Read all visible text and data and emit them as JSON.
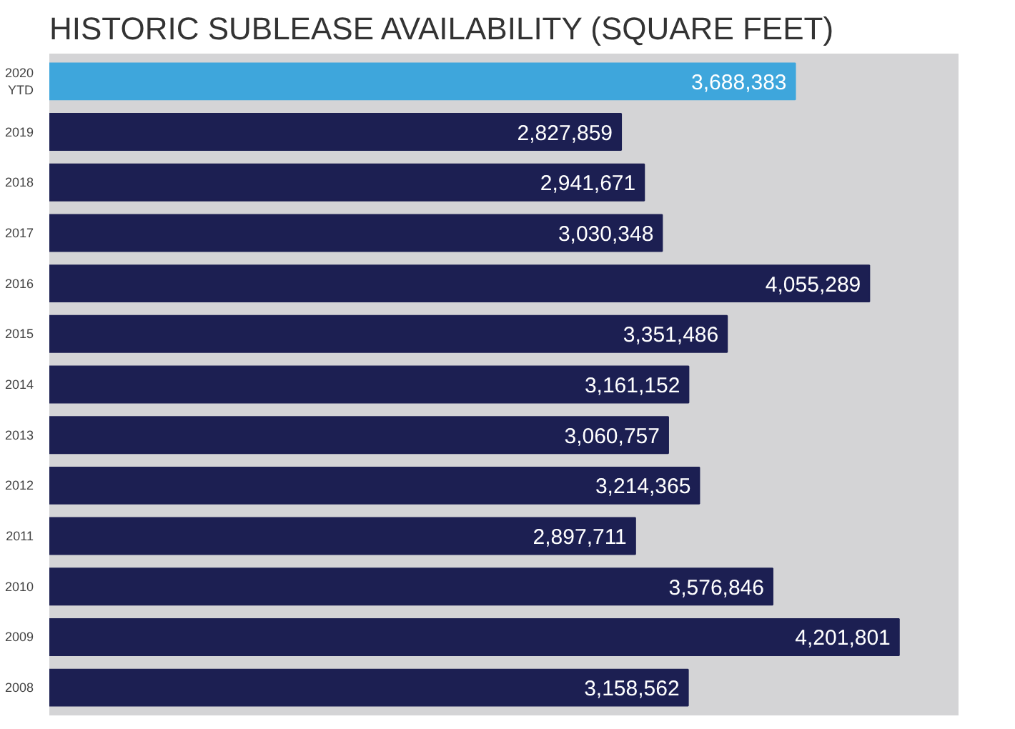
{
  "chart_data": {
    "type": "bar",
    "orientation": "horizontal",
    "title": "HISTORIC SUBLEASE AVAILABILITY (SQUARE FEET)",
    "categories": [
      "2020 YTD",
      "2019",
      "2018",
      "2017",
      "2016",
      "2015",
      "2014",
      "2013",
      "2012",
      "2011",
      "2010",
      "2009",
      "2008"
    ],
    "values": [
      3688383,
      2827859,
      2941671,
      3030348,
      4055289,
      3351486,
      3161152,
      3060757,
      3214365,
      2897711,
      3576846,
      4201801,
      3158562
    ],
    "colors": [
      "#3ea6dc",
      "#1c1f52",
      "#1c1f52",
      "#1c1f52",
      "#1c1f52",
      "#1c1f52",
      "#1c1f52",
      "#1c1f52",
      "#1c1f52",
      "#1c1f52",
      "#1c1f52",
      "#1c1f52",
      "#1c1f52"
    ],
    "value_labels": [
      "3,688,383",
      "2,827,859",
      "2,941,671",
      "3,030,348",
      "4,055,289",
      "3,351,486",
      "3,161,152",
      "3,060,757",
      "3,214,365",
      "2,897,711",
      "3,576,846",
      "4,201,801",
      "3,158,562"
    ],
    "grid": false
  }
}
